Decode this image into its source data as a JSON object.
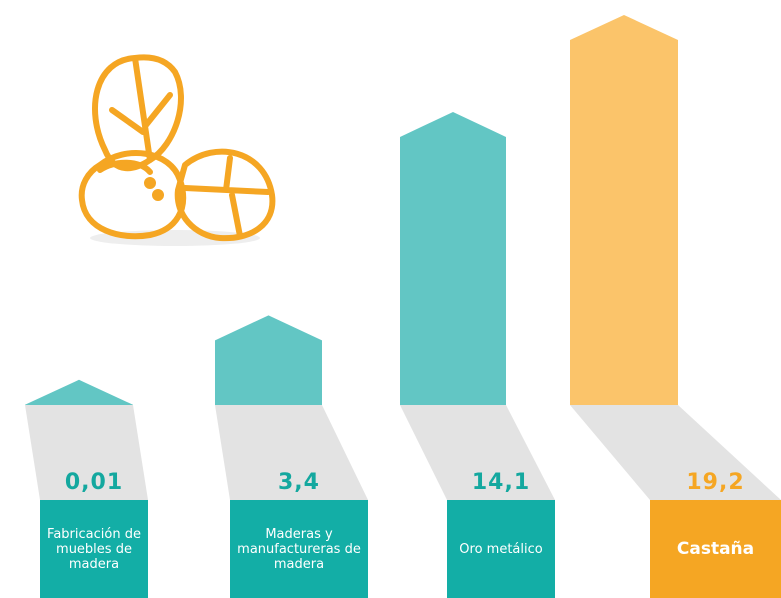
{
  "chart_data": {
    "type": "bar",
    "categories": [
      "Fabricación de muebles de madera",
      "Maderas y manufactureras de madera",
      "Oro metálico",
      "Castaña"
    ],
    "values": [
      0.01,
      3.4,
      14.1,
      19.2
    ],
    "value_labels": [
      "0,01",
      "3,4",
      "14,1",
      "19,2"
    ],
    "bar_colors": [
      "#62c6c4",
      "#62c6c4",
      "#62c6c4",
      "#fbc46a"
    ],
    "box_colors": [
      "#13aea6",
      "#13aea6",
      "#13aea6",
      "#f5a623"
    ],
    "label_colors": [
      "#14a89f",
      "#14a89f",
      "#14a89f",
      "#f5a623"
    ]
  }
}
